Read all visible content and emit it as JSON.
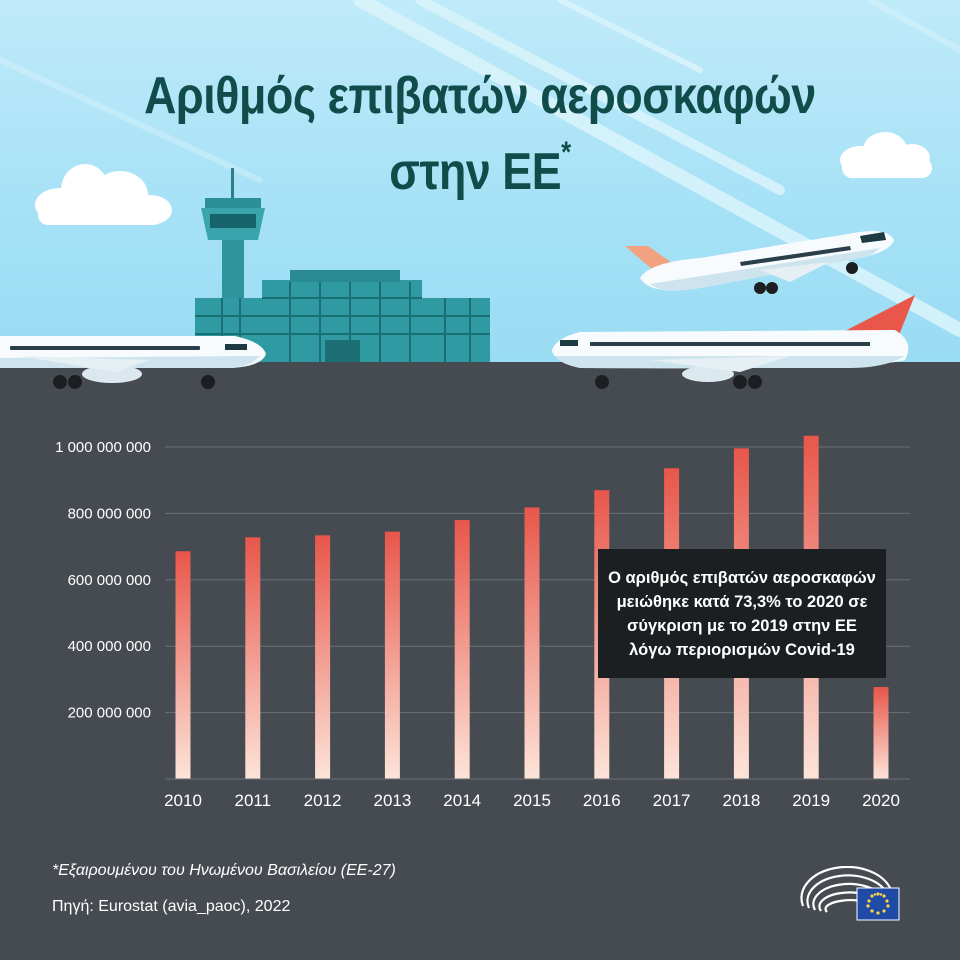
{
  "title_line1": "Αριθμός επιβατών αεροσκαφών",
  "title_line2": "στην ΕΕ",
  "title_mark": "*",
  "note": "Ο αριθμός επιβατών αεροσκαφών μειώθηκε κατά 73,3% το 2020 σε σύγκριση με το 2019 στην ΕΕ λόγω περιορισμών Covid-19",
  "footnote": "*Εξαιρουμένου του Ηνωμένου Βασιλείου (ΕΕ-27)",
  "source": "Πηγή: Eurostat (avia_paoc), 2022",
  "colors": {
    "sky": "#a5e1f6",
    "ground": "#454b50",
    "title": "#0f4c4a",
    "bar_top": "#e8564a",
    "bar_bottom": "#fce3d8",
    "note_bg": "#1b1f22"
  },
  "chart_data": {
    "type": "bar",
    "categories": [
      "2010",
      "2011",
      "2012",
      "2013",
      "2014",
      "2015",
      "2016",
      "2017",
      "2018",
      "2019",
      "2020"
    ],
    "values": [
      686000000,
      728000000,
      734000000,
      745000000,
      780000000,
      818000000,
      870000000,
      936000000,
      996000000,
      1034000000,
      277000000
    ],
    "y_ticks": [
      200000000,
      400000000,
      600000000,
      800000000,
      1000000000
    ],
    "y_tick_labels": [
      "200 000 000",
      "400 000 000",
      "600 000 000",
      "800 000 000",
      "1 000 000 000"
    ],
    "ylim": [
      0,
      1000000000
    ],
    "grid": true,
    "xlabel": "",
    "ylabel": ""
  }
}
